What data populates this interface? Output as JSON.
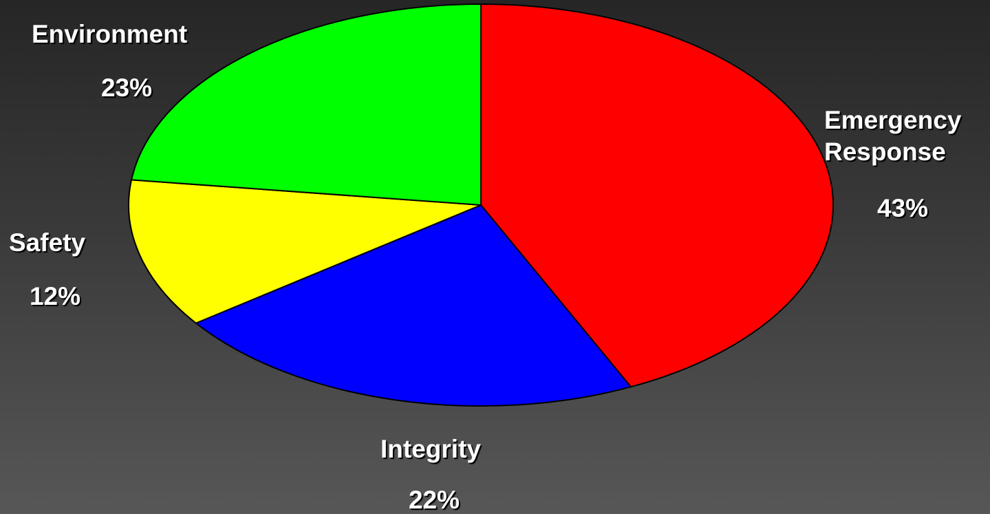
{
  "chart_data": {
    "type": "pie",
    "title": "",
    "slices": [
      {
        "key": "emergency",
        "label": "Emergency Response",
        "label_lines": [
          "Emergency",
          "Response"
        ],
        "value": 43,
        "value_label": "43%",
        "color": "#FF0000"
      },
      {
        "key": "integrity",
        "label": "Integrity",
        "label_lines": [
          "Integrity"
        ],
        "value": 22,
        "value_label": "22%",
        "color": "#0000FF"
      },
      {
        "key": "safety",
        "label": "Safety",
        "label_lines": [
          "Safety"
        ],
        "value": 12,
        "value_label": "12%",
        "color": "#FFFF00"
      },
      {
        "key": "environment",
        "label": "Environment",
        "label_lines": [
          "Environment"
        ],
        "value": 23,
        "value_label": "23%",
        "color": "#00FF00"
      }
    ],
    "start": "top",
    "direction": "clockwise",
    "legend": "none",
    "labels": "outside"
  }
}
